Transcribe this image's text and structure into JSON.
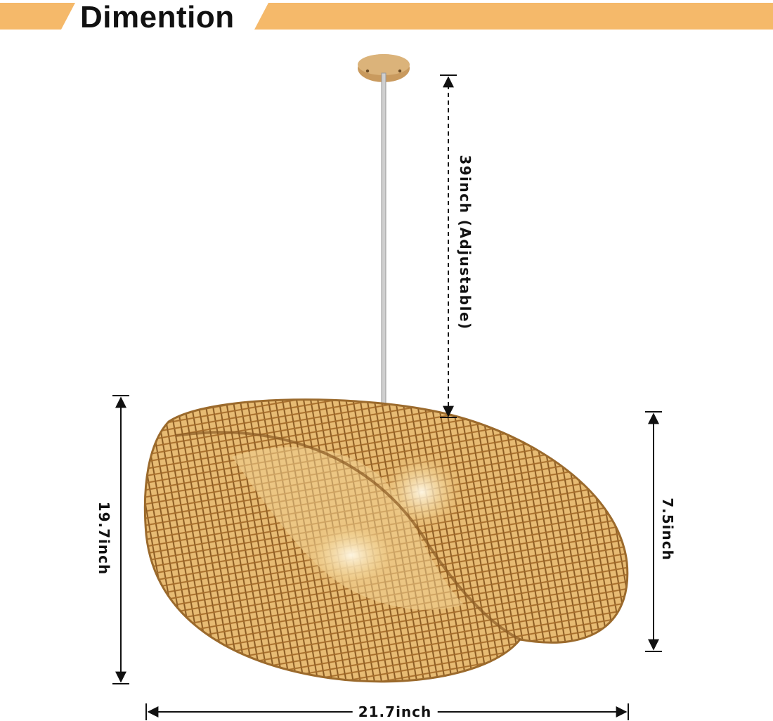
{
  "header": {
    "title": "Dimention",
    "banner_color": "#f5b96a"
  },
  "product": {
    "name_icon": "bamboo-pendant-lamp-icon",
    "canopy_icon": "wooden-ceiling-canopy-icon",
    "shade_color": "#d9a55a"
  },
  "dimensions": {
    "drop_length": "39inch (Adjustable)",
    "height": "19.7inch",
    "depth": "7.5inch",
    "width": "21.7inch"
  }
}
